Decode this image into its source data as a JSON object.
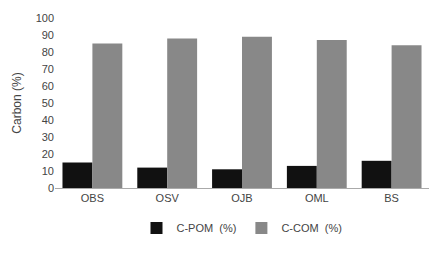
{
  "chart_data": {
    "type": "bar",
    "categories": [
      "OBS",
      "OSV",
      "OJB",
      "OML",
      "BS"
    ],
    "series": [
      {
        "name": "C-POM  (%)",
        "color": "#111111",
        "values": [
          15,
          12,
          11,
          13,
          16
        ]
      },
      {
        "name": "C-COM  (%)",
        "color": "#888888",
        "values": [
          85,
          88,
          89,
          87,
          84
        ]
      }
    ],
    "ylabel": "Carbon (%)",
    "ylim": [
      0,
      100
    ],
    "yticks": [
      0,
      10,
      20,
      30,
      40,
      50,
      60,
      70,
      80,
      90,
      100
    ],
    "grid": false,
    "legend": "bottom"
  }
}
